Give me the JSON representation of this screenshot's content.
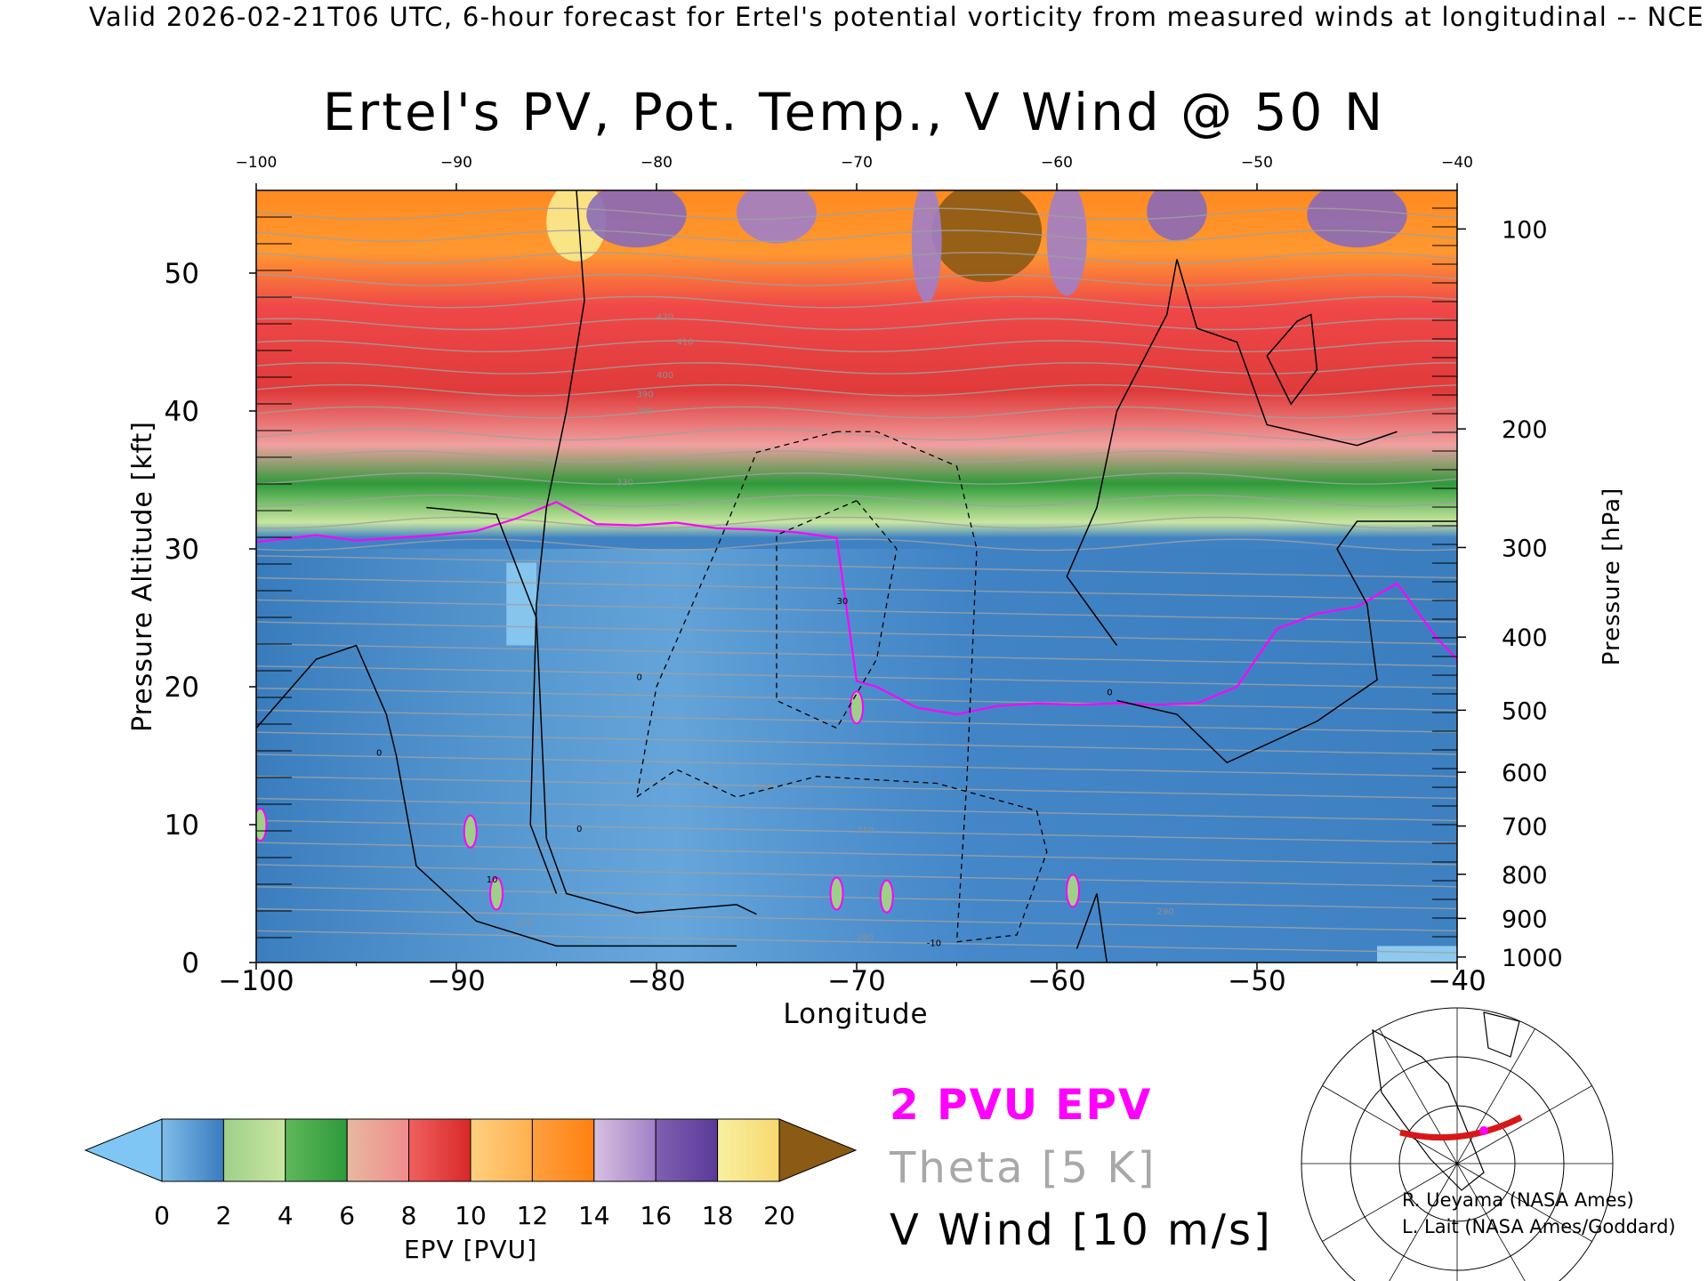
{
  "header": "Valid 2026-02-21T06 UTC, 6-hour forecast for Ertel's potential vorticity from measured winds at longitudinal -- NCE",
  "chart_data": {
    "type": "heatmap",
    "title": "Ertel's PV, Pot. Temp., V Wind @ 50 N",
    "xlabel": "Longitude",
    "ylabel_left": "Pressure Altitude [kft]",
    "ylabel_right": "Pressure [hPa]",
    "xlim": [
      -100,
      -40
    ],
    "ylim": [
      0,
      56
    ],
    "x_ticks": [
      -100,
      -90,
      -80,
      -70,
      -60,
      -50,
      -40
    ],
    "x_tick_labels": [
      "−100",
      "−90",
      "−80",
      "−70",
      "−60",
      "−50",
      "−40"
    ],
    "top_x_tick_labels": [
      "−100",
      "−90",
      "−80",
      "−70",
      "−60",
      "−50",
      "−40"
    ],
    "y_ticks": [
      0,
      10,
      20,
      30,
      40,
      50
    ],
    "y_tick_labels": [
      "0",
      "10",
      "20",
      "30",
      "40",
      "50"
    ],
    "pressure_ticks": [
      {
        "label": "100",
        "kft": 53.2
      },
      {
        "label": "200",
        "kft": 38.7
      },
      {
        "label": "300",
        "kft": 30.1
      },
      {
        "label": "400",
        "kft": 23.6
      },
      {
        "label": "500",
        "kft": 18.3
      },
      {
        "label": "600",
        "kft": 13.8
      },
      {
        "label": "700",
        "kft": 9.9
      },
      {
        "label": "800",
        "kft": 6.4
      },
      {
        "label": "900",
        "kft": 3.2
      },
      {
        "label": "1000",
        "kft": 0.4
      }
    ],
    "colorbar": {
      "label": "EPV [PVU]",
      "ticks": [
        "0",
        "2",
        "4",
        "6",
        "8",
        "10",
        "12",
        "14",
        "16",
        "18",
        "20"
      ],
      "under_color": "#7fc6f5",
      "over_color": "#8b5a14",
      "bands": [
        {
          "range": [
            0,
            2
          ],
          "from": "#7fbde8",
          "to": "#3a7bbf"
        },
        {
          "range": [
            2,
            4
          ],
          "from": "#9fd08a",
          "to": "#c9e6a0"
        },
        {
          "range": [
            4,
            6
          ],
          "from": "#5fb85a",
          "to": "#2e9a3a"
        },
        {
          "range": [
            6,
            8
          ],
          "from": "#e8b8a0",
          "to": "#f08c8c"
        },
        {
          "range": [
            8,
            10
          ],
          "from": "#f06060",
          "to": "#d82828"
        },
        {
          "range": [
            10,
            12
          ],
          "from": "#ffd080",
          "to": "#ffb050"
        },
        {
          "range": [
            12,
            14
          ],
          "from": "#ffa040",
          "to": "#ff8010"
        },
        {
          "range": [
            14,
            16
          ],
          "from": "#d8c0e0",
          "to": "#a080c8"
        },
        {
          "range": [
            16,
            18
          ],
          "from": "#8060b0",
          "to": "#5a3a98"
        },
        {
          "range": [
            18,
            20
          ],
          "from": "#f8f0a0",
          "to": "#f8d870"
        }
      ]
    },
    "pv2_tropopause": {
      "name": "2 PVU EPV",
      "color": "#ff00ff",
      "x": [
        -100,
        -97,
        -95,
        -93,
        -91,
        -89,
        -87,
        -85,
        -83,
        -81,
        -79,
        -77,
        -75,
        -73,
        -71,
        -70,
        -69,
        -67,
        -65,
        -63,
        -61,
        -59,
        -57,
        -55,
        -53,
        -51,
        -49,
        -47,
        -45,
        -43,
        -41,
        -40
      ],
      "y": [
        30.5,
        31.0,
        30.6,
        30.8,
        31.0,
        31.3,
        32.2,
        33.4,
        31.8,
        31.7,
        31.9,
        31.5,
        31.4,
        31.2,
        30.8,
        20.4,
        20.0,
        18.5,
        18.0,
        18.6,
        18.8,
        18.7,
        18.8,
        18.7,
        18.8,
        20.0,
        24.2,
        25.3,
        25.8,
        27.5,
        23.5,
        22.0
      ]
    },
    "v_wind_contours": {
      "name": "V Wind [10 m/s]",
      "interval_ms": 10,
      "labels": [
        "0",
        "10",
        "30",
        "-10"
      ]
    },
    "theta_contours": {
      "name": "Theta [5 K]",
      "interval_K": 5,
      "labels": [
        "270",
        "280",
        "290",
        "310",
        "320",
        "330",
        "370",
        "380",
        "390",
        "400",
        "410",
        "420"
      ]
    }
  },
  "legend": {
    "pv2": "2 PVU EPV",
    "theta": "Theta [5 K]",
    "vwind": "V Wind [10 m/s]"
  },
  "credits": {
    "line1": "R. Ueyama (NASA Ames)",
    "line2": "L. Lait (NASA Ames/Goddard)"
  },
  "inset_map": {
    "highlight_color": "#d81818",
    "marker_color": "#ff00ff",
    "latitude": 50
  }
}
